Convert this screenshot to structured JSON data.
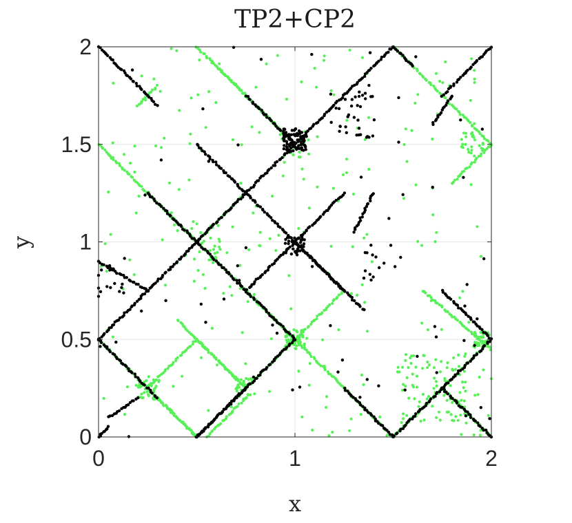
{
  "chart_data": {
    "type": "scatter",
    "title": "TP2+CP2",
    "xlabel": "x",
    "ylabel": "y",
    "xlim": [
      0,
      2
    ],
    "ylim": [
      0,
      2
    ],
    "xticks": [
      "0",
      "1",
      "2"
    ],
    "yticks": [
      "0",
      "0.5",
      "1",
      "1.5",
      "2"
    ],
    "xtick_values": [
      0,
      1,
      2
    ],
    "ytick_values": [
      0,
      0.5,
      1,
      1.5,
      2
    ],
    "grid": true,
    "box": true,
    "series": [
      {
        "color": "#58f058",
        "marker": "dot",
        "segments": [
          {
            "from": [
              0.0,
              1.5
            ],
            "to": [
              0.5,
              1.0
            ]
          },
          {
            "from": [
              0.25,
              1.25
            ],
            "to": [
              1.0,
              0.5
            ]
          },
          {
            "from": [
              1.0,
              0.5
            ],
            "to": [
              1.25,
              0.75
            ]
          },
          {
            "from": [
              0.5,
              2.0
            ],
            "to": [
              1.0,
              1.5
            ]
          },
          {
            "from": [
              0.6,
              1.9
            ],
            "to": [
              0.9,
              1.6
            ]
          },
          {
            "from": [
              1.5,
              2.0
            ],
            "to": [
              2.0,
              1.5
            ]
          },
          {
            "from": [
              1.8,
              1.3
            ],
            "to": [
              2.0,
              1.5
            ]
          },
          {
            "from": [
              0.2,
              1.7
            ],
            "to": [
              0.3,
              1.8
            ]
          },
          {
            "from": [
              0.0,
              0.5
            ],
            "to": [
              0.5,
              0.0
            ]
          },
          {
            "from": [
              0.25,
              0.25
            ],
            "to": [
              0.5,
              0.5
            ]
          },
          {
            "from": [
              0.5,
              0.5
            ],
            "to": [
              0.75,
              0.25
            ]
          },
          {
            "from": [
              0.75,
              0.25
            ],
            "to": [
              1.0,
              0.5
            ]
          },
          {
            "from": [
              0.75,
              0.75
            ],
            "to": [
              1.0,
              0.5
            ]
          },
          {
            "from": [
              0.55,
              0.0
            ],
            "to": [
              0.75,
              0.2
            ]
          },
          {
            "from": [
              0.3,
              0.2
            ],
            "to": [
              0.5,
              0.0
            ]
          },
          {
            "from": [
              0.4,
              0.6
            ],
            "to": [
              0.75,
              0.25
            ]
          },
          {
            "from": [
              1.0,
              0.5
            ],
            "to": [
              1.5,
              0.0
            ]
          },
          {
            "from": [
              1.5,
              0.0
            ],
            "to": [
              2.0,
              0.5
            ]
          },
          {
            "from": [
              1.75,
              0.25
            ],
            "to": [
              2.0,
              0.0
            ]
          },
          {
            "from": [
              1.65,
              0.75
            ],
            "to": [
              2.0,
              0.45
            ]
          },
          {
            "from": [
              0.5,
              1.0
            ],
            "to": [
              0.75,
              1.25
            ]
          }
        ],
        "clusters": [
          {
            "x": 1.0,
            "y": 0.5,
            "n": 55,
            "spread": 0.05
          },
          {
            "x": 0.25,
            "y": 0.25,
            "n": 40,
            "spread": 0.06
          },
          {
            "x": 0.75,
            "y": 0.25,
            "n": 30,
            "spread": 0.05
          },
          {
            "x": 1.95,
            "y": 0.5,
            "n": 40,
            "spread": 0.04
          },
          {
            "x": 1.7,
            "y": 0.25,
            "n": 90,
            "spread": 0.18
          },
          {
            "x": 1.9,
            "y": 1.5,
            "n": 25,
            "spread": 0.06
          },
          {
            "x": 0.5,
            "y": 1.0,
            "n": 30,
            "spread": 0.12
          },
          {
            "x": 1.0,
            "y": 1.5,
            "n": 20,
            "spread": 0.08
          }
        ],
        "scatter": 220
      },
      {
        "color": "#000000",
        "marker": "dot",
        "segments": [
          {
            "from": [
              0.0,
              2.0
            ],
            "to": [
              0.3,
              1.7
            ]
          },
          {
            "from": [
              0.5,
              1.5
            ],
            "to": [
              1.25,
              0.75
            ]
          },
          {
            "from": [
              0.75,
              1.75
            ],
            "to": [
              1.0,
              1.5
            ]
          },
          {
            "from": [
              0.25,
              1.25
            ],
            "to": [
              1.0,
              0.5
            ]
          },
          {
            "from": [
              0.0,
              0.5
            ],
            "to": [
              1.5,
              2.0
            ]
          },
          {
            "from": [
              1.5,
              2.0
            ],
            "to": [
              1.6,
              1.9
            ]
          },
          {
            "from": [
              1.75,
              1.75
            ],
            "to": [
              2.0,
              2.0
            ]
          },
          {
            "from": [
              1.0,
              1.0
            ],
            "to": [
              1.35,
              0.65
            ]
          },
          {
            "from": [
              0.75,
              0.75
            ],
            "to": [
              1.0,
              1.0
            ]
          },
          {
            "from": [
              1.0,
              1.0
            ],
            "to": [
              1.25,
              1.25
            ]
          },
          {
            "from": [
              0.0,
              0.5
            ],
            "to": [
              0.3,
              0.2
            ]
          },
          {
            "from": [
              0.5,
              0.0
            ],
            "to": [
              1.0,
              0.5
            ]
          },
          {
            "from": [
              0.75,
              0.25
            ],
            "to": [
              0.5,
              0.0
            ]
          },
          {
            "from": [
              1.25,
              0.25
            ],
            "to": [
              1.5,
              0.0
            ]
          },
          {
            "from": [
              1.5,
              0.0
            ],
            "to": [
              2.0,
              0.5
            ]
          },
          {
            "from": [
              1.75,
              0.75
            ],
            "to": [
              2.0,
              0.5
            ]
          },
          {
            "from": [
              1.75,
              0.25
            ],
            "to": [
              2.0,
              0.0
            ]
          },
          {
            "from": [
              0.0,
              0.9
            ],
            "to": [
              0.25,
              0.75
            ]
          },
          {
            "from": [
              1.3,
              1.05
            ],
            "to": [
              1.4,
              1.25
            ]
          },
          {
            "from": [
              1.7,
              1.6
            ],
            "to": [
              1.8,
              1.75
            ]
          },
          {
            "from": [
              0.05,
              0.1
            ],
            "to": [
              0.2,
              0.2
            ]
          },
          {
            "from": [
              0.0,
              0.0
            ],
            "to": [
              0.05,
              0.05
            ]
          }
        ],
        "clusters": [
          {
            "x": 1.0,
            "y": 1.52,
            "n": 80,
            "spread": 0.06
          },
          {
            "x": 1.3,
            "y": 1.65,
            "n": 35,
            "spread": 0.12
          },
          {
            "x": 1.0,
            "y": 0.98,
            "n": 30,
            "spread": 0.05
          },
          {
            "x": 1.45,
            "y": 0.9,
            "n": 15,
            "spread": 0.1
          },
          {
            "x": 0.05,
            "y": 0.8,
            "n": 15,
            "spread": 0.08
          }
        ],
        "scatter": 60
      }
    ]
  }
}
